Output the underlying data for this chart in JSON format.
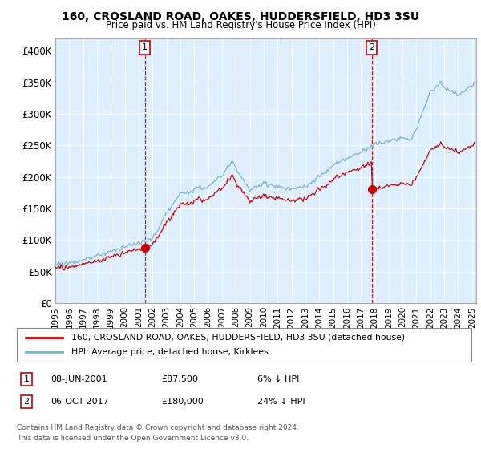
{
  "title": "160, CROSLAND ROAD, OAKES, HUDDERSFIELD, HD3 3SU",
  "subtitle": "Price paid vs. HM Land Registry's House Price Index (HPI)",
  "legend_line1": "160, CROSLAND ROAD, OAKES, HUDDERSFIELD, HD3 3SU (detached house)",
  "legend_line2": "HPI: Average price, detached house, Kirklees",
  "sale1_date": "08-JUN-2001",
  "sale1_price": 87500,
  "sale1_x": 2001.44,
  "sale2_date": "06-OCT-2017",
  "sale2_price": 180000,
  "sale2_x": 2017.77,
  "footer": "Contains HM Land Registry data © Crown copyright and database right 2024.\nThis data is licensed under the Open Government Licence v3.0.",
  "hpi_color": "#7ab3d4",
  "price_color": "#cc0000",
  "vline_color": "#cc0000",
  "bg_color": "#ddeeff",
  "ylim": [
    0,
    420000
  ],
  "yticks": [
    0,
    50000,
    100000,
    150000,
    200000,
    250000,
    300000,
    350000,
    400000
  ],
  "ytick_labels": [
    "£0",
    "£50K",
    "£100K",
    "£150K",
    "£200K",
    "£250K",
    "£300K",
    "£350K",
    "£400K"
  ],
  "xlim_min": 1995,
  "xlim_max": 2025.3
}
